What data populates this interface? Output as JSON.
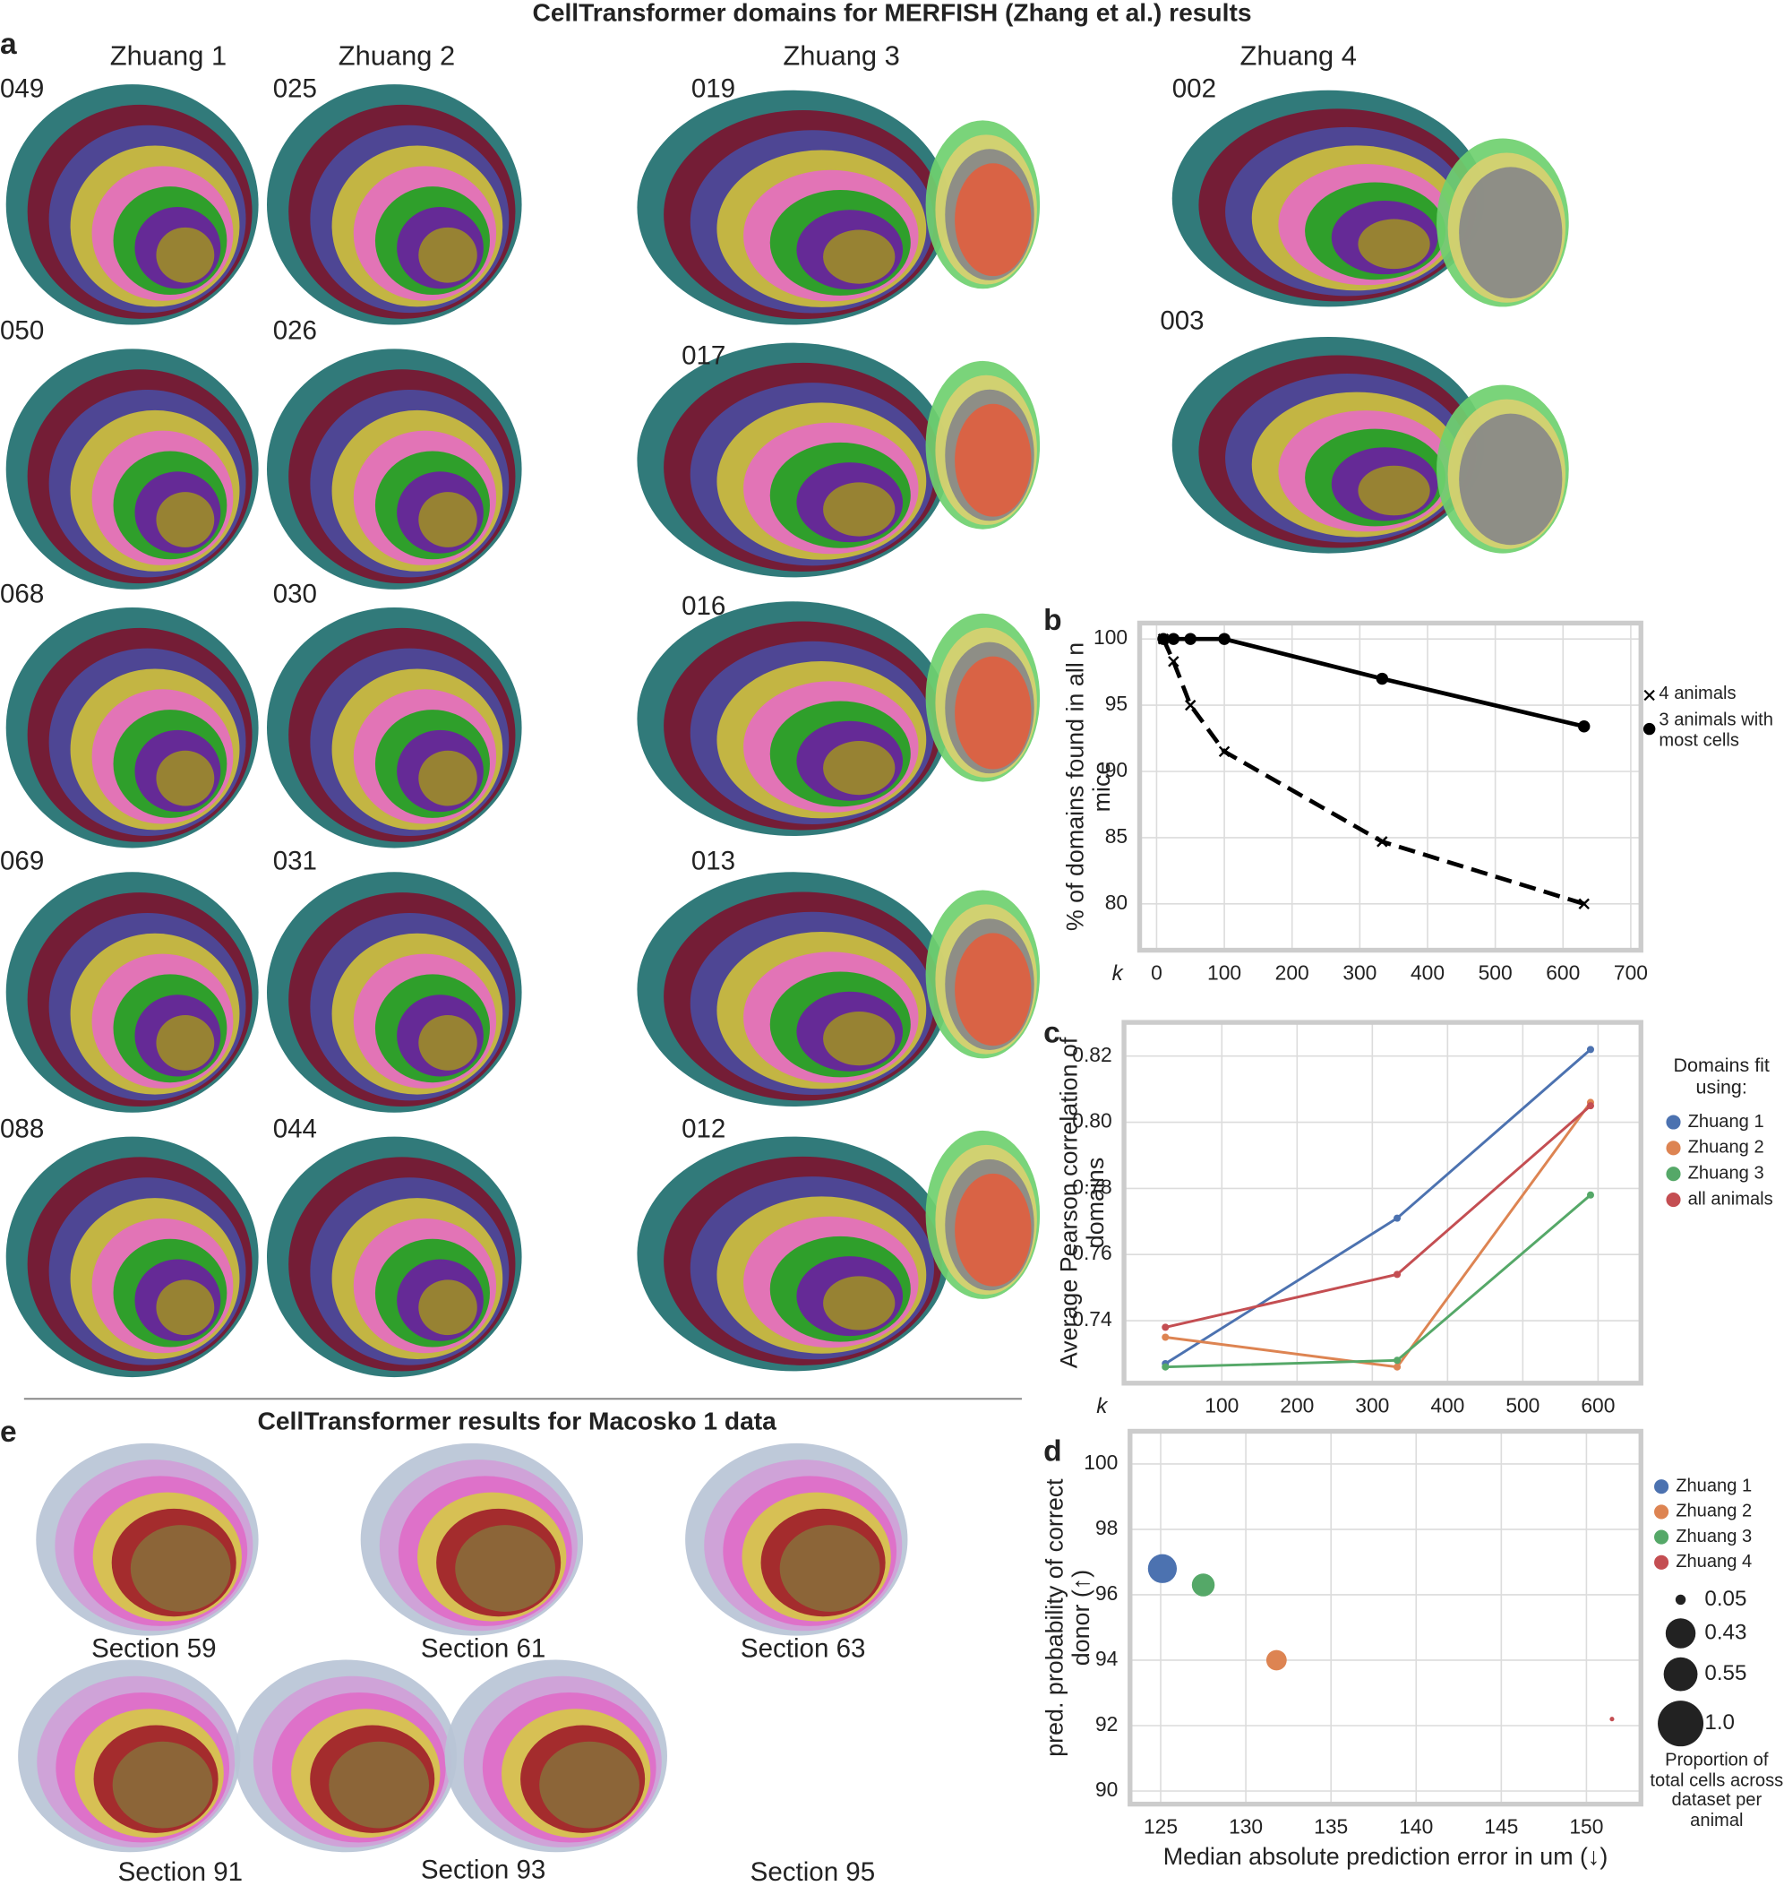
{
  "title": "CellTransformer domains for MERFISH (Zhang et al.) results",
  "panel_letters": [
    "a",
    "b",
    "c",
    "d",
    "e"
  ],
  "panel_a": {
    "columns": [
      {
        "name": "Zhuang 1",
        "sections": [
          "049",
          "050",
          "068",
          "069",
          "088"
        ]
      },
      {
        "name": "Zhuang 2",
        "sections": [
          "025",
          "026",
          "030",
          "031",
          "044"
        ]
      },
      {
        "name": "Zhuang 3",
        "sections": [
          "019",
          "017",
          "016",
          "013",
          "012"
        ]
      },
      {
        "name": "Zhuang 4",
        "sections": [
          "002",
          "003"
        ]
      }
    ]
  },
  "panel_e": {
    "title": "CellTransformer results for Macosko 1 data",
    "sections": [
      "Section 59",
      "Section 61",
      "Section 63",
      "Section 91",
      "Section 93",
      "Section 95"
    ]
  },
  "chart_data": [
    {
      "type": "line",
      "y_label": "% of domains found in all n mice",
      "x_label": "k",
      "x": [
        10,
        25,
        50,
        100,
        333,
        631
      ],
      "xlim": [
        -25,
        715
      ],
      "ylim": [
        76.5,
        101.2
      ],
      "xticks": [
        0,
        100,
        200,
        300,
        400,
        500,
        600,
        700
      ],
      "yticks": [
        80,
        85,
        90,
        95,
        100
      ],
      "grid": true,
      "series": [
        {
          "name": "4 animals",
          "color": "#000000",
          "marker": "x",
          "linestyle": "dashed",
          "values": [
            100,
            98.3,
            95,
            91.5,
            84.7,
            80
          ]
        },
        {
          "name": "3 animals with most cells",
          "color": "#000000",
          "marker": "o",
          "linestyle": "solid",
          "values": [
            100,
            100,
            100,
            100,
            97,
            93.4
          ]
        }
      ]
    },
    {
      "type": "line",
      "y_label": "Average Pearson correlation of domains",
      "x_label": "k",
      "legend_title": "Domains fit using:",
      "x": [
        25,
        333,
        590
      ],
      "xlim": [
        -30,
        657
      ],
      "ylim": [
        0.7211,
        0.8302
      ],
      "xticks": [
        100,
        200,
        300,
        400,
        500,
        600
      ],
      "yticks": [
        0.74,
        0.76,
        0.78,
        {
          "value": 0.8,
          "label": "0.80"
        },
        0.82
      ],
      "grid": true,
      "series": [
        {
          "name": "Zhuang 1",
          "color": "#4c72b0",
          "marker": "o",
          "linestyle": "solid",
          "values": [
            0.727,
            0.771,
            0.822
          ]
        },
        {
          "name": "Zhuang 2",
          "color": "#dd8452",
          "marker": "o",
          "linestyle": "solid",
          "values": [
            0.735,
            0.726,
            0.806
          ]
        },
        {
          "name": "Zhuang 3",
          "color": "#55a868",
          "marker": "o",
          "linestyle": "solid",
          "values": [
            0.726,
            0.728,
            0.778
          ]
        },
        {
          "name": "all animals",
          "color": "#c44e52",
          "marker": "o",
          "linestyle": "solid",
          "values": [
            0.738,
            0.754,
            0.805
          ]
        }
      ]
    },
    {
      "type": "scatter",
      "y_label": "pred. probability of correct donor (↑)",
      "x_label": "Median absolute prediction error in um (↓)",
      "xlim": [
        123.2,
        153.2
      ],
      "ylim": [
        89.6,
        101
      ],
      "xticks": [
        125,
        130,
        135,
        140,
        145,
        150
      ],
      "yticks": [
        90,
        92,
        94,
        96,
        98,
        100
      ],
      "grid": true,
      "series": [
        {
          "name": "Zhuang 1",
          "color": "#4c72b0",
          "x": [
            125.1
          ],
          "values": [
            96.8
          ],
          "sizes": [
            0.4
          ]
        },
        {
          "name": "Zhuang 2",
          "color": "#dd8452",
          "x": [
            131.8
          ],
          "values": [
            94.0
          ],
          "sizes": [
            0.2
          ]
        },
        {
          "name": "Zhuang 3",
          "color": "#55a868",
          "x": [
            127.5
          ],
          "values": [
            96.3
          ],
          "sizes": [
            0.25
          ]
        },
        {
          "name": "Zhuang 4",
          "color": "#c44e52",
          "x": [
            151.5
          ],
          "values": [
            92.2
          ],
          "sizes": [
            0.01
          ]
        }
      ],
      "size_legend": {
        "title": "Proportion of total cells across dataset per animal",
        "values": [
          0.05,
          0.43,
          0.55,
          {
            "value": 1,
            "label": "1.0"
          }
        ]
      }
    }
  ]
}
